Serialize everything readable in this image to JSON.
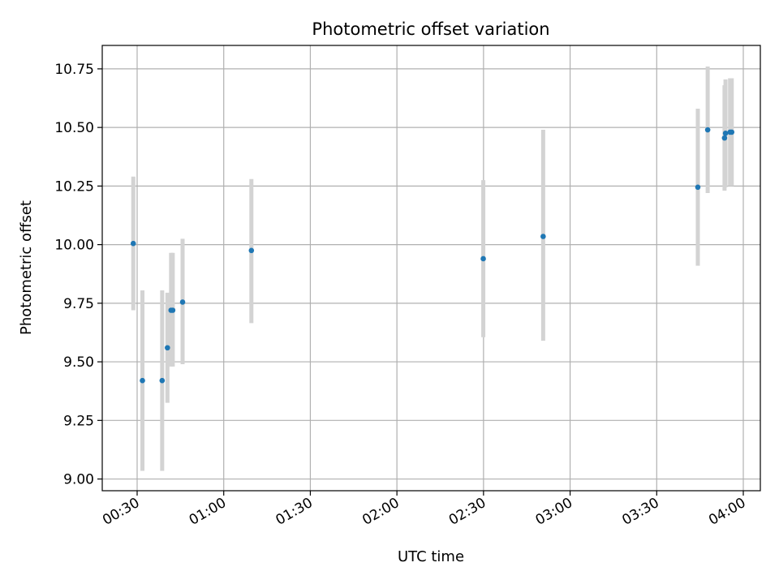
{
  "chart_data": {
    "type": "scatter",
    "title": "Photometric offset variation",
    "xlabel": "UTC time",
    "ylabel": "Photometric offset",
    "x_axis": {
      "type": "time",
      "ticks": [
        "00:30",
        "01:00",
        "01:30",
        "02:00",
        "02:30",
        "03:00",
        "03:30",
        "04:00"
      ]
    },
    "y_axis": {
      "ticks": [
        "9.00",
        "9.25",
        "9.50",
        "9.75",
        "10.00",
        "10.25",
        "10.50",
        "10.75"
      ]
    },
    "ylim": [
      8.95,
      10.85
    ],
    "grid": true,
    "colors": {
      "point": "#1f77b4",
      "errorbar": "#d3d3d3",
      "grid": "#b0b0b0"
    },
    "points": [
      {
        "x": "00:28:40",
        "y": 10.005,
        "err_low": 9.72,
        "err_high": 10.29
      },
      {
        "x": "00:31:50",
        "y": 9.42,
        "err_low": 9.035,
        "err_high": 9.805
      },
      {
        "x": "00:38:40",
        "y": 9.42,
        "err_low": 9.035,
        "err_high": 9.805
      },
      {
        "x": "00:40:30",
        "y": 9.56,
        "err_low": 9.325,
        "err_high": 9.795
      },
      {
        "x": "00:41:45",
        "y": 9.72,
        "err_low": 9.48,
        "err_high": 9.965
      },
      {
        "x": "00:42:20",
        "y": 9.72,
        "err_low": 9.48,
        "err_high": 9.965
      },
      {
        "x": "00:45:45",
        "y": 9.755,
        "err_low": 9.49,
        "err_high": 10.025
      },
      {
        "x": "01:09:35",
        "y": 9.975,
        "err_low": 9.665,
        "err_high": 10.28
      },
      {
        "x": "02:29:55",
        "y": 9.94,
        "err_low": 9.605,
        "err_high": 10.275
      },
      {
        "x": "02:50:40",
        "y": 10.035,
        "err_low": 9.59,
        "err_high": 10.49
      },
      {
        "x": "03:44:15",
        "y": 10.245,
        "err_low": 9.91,
        "err_high": 10.58
      },
      {
        "x": "03:47:40",
        "y": 10.49,
        "err_low": 10.22,
        "err_high": 10.76
      },
      {
        "x": "03:53:30",
        "y": 10.455,
        "err_low": 10.23,
        "err_high": 10.68
      },
      {
        "x": "03:53:50",
        "y": 10.475,
        "err_low": 10.245,
        "err_high": 10.705
      },
      {
        "x": "03:55:25",
        "y": 10.48,
        "err_low": 10.25,
        "err_high": 10.71
      },
      {
        "x": "03:56:00",
        "y": 10.48,
        "err_low": 10.25,
        "err_high": 10.71
      }
    ]
  }
}
